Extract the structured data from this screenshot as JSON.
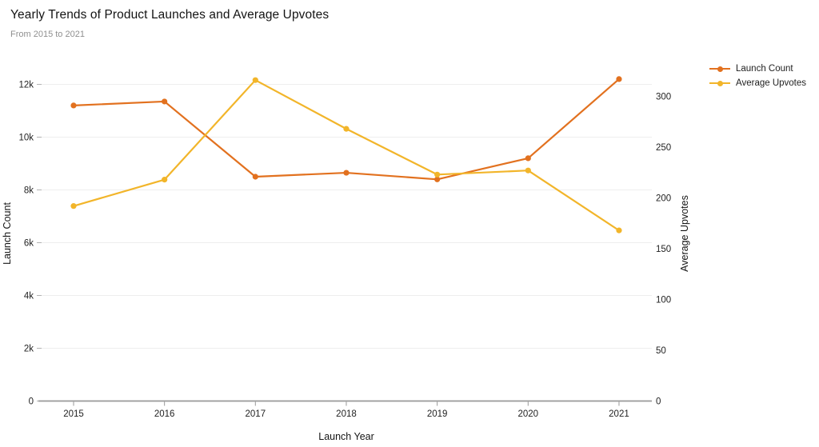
{
  "chart_data": {
    "type": "line",
    "title": "Yearly Trends of Product Launches and Average Upvotes",
    "subtitle": "From 2015 to 2021",
    "xlabel": "Launch Year",
    "x": [
      "2015",
      "2016",
      "2017",
      "2018",
      "2019",
      "2020",
      "2021"
    ],
    "y_axis_left": {
      "label": "Launch Count",
      "min": 0,
      "max": 12000,
      "ticks": [
        0,
        2000,
        4000,
        6000,
        8000,
        10000,
        12000
      ],
      "tick_labels": [
        "0",
        "2k",
        "4k",
        "6k",
        "8k",
        "10k",
        "12k"
      ]
    },
    "y_axis_right": {
      "label": "Average Upvotes",
      "min": 0,
      "max": 300,
      "ticks": [
        0,
        50,
        100,
        150,
        200,
        250,
        300
      ],
      "tick_labels": [
        "0",
        "50",
        "100",
        "150",
        "200",
        "250",
        "300"
      ]
    },
    "series": [
      {
        "name": "Launch Count",
        "axis": "left",
        "color": "#E2711F",
        "values": [
          11200,
          11350,
          8500,
          8650,
          8400,
          9200,
          12200
        ]
      },
      {
        "name": "Average Upvotes",
        "axis": "right",
        "color": "#F2B52A",
        "values": [
          192,
          218,
          316,
          268,
          223,
          227,
          168
        ]
      }
    ],
    "legend": {
      "position": "top-right"
    },
    "grid": "horizontal-only",
    "colors": {
      "axis_line": "#999999",
      "gridline": "#eeeeee",
      "tick_text": "#1f1f1f",
      "subtitle_text": "#8f8f8f"
    }
  }
}
